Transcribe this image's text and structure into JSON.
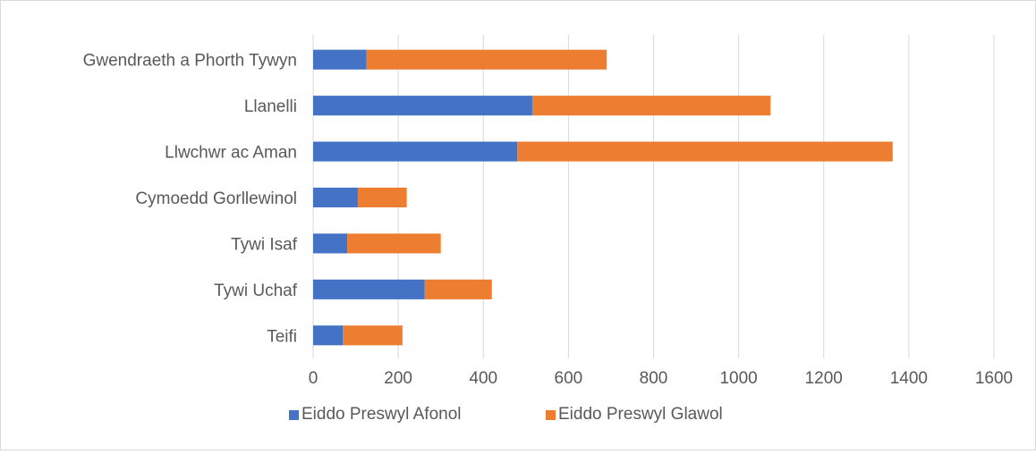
{
  "chart_data": {
    "type": "bar",
    "orientation": "horizontal",
    "stacked": true,
    "categories": [
      "Gwendraeth a Phorth Tywyn",
      "Llanelli",
      "Llwchwr ac Aman",
      "Cymoedd Gorllewinol",
      "Tywi Isaf",
      "Tywi Uchaf",
      "Teifi"
    ],
    "series": [
      {
        "name": "Eiddo Preswyl Afonol",
        "values": [
          125,
          515,
          480,
          105,
          80,
          262,
          70
        ]
      },
      {
        "name": "Eiddo Preswyl Glawol",
        "values": [
          565,
          560,
          882,
          115,
          220,
          158,
          140
        ]
      }
    ],
    "colors": [
      "#4472c4",
      "#ed7d31"
    ],
    "xlim": [
      0,
      1600
    ],
    "xticks": [
      "0",
      "200",
      "400",
      "600",
      "800",
      "1000",
      "1200",
      "1400",
      "1600"
    ],
    "grid": "vertical",
    "legend_position": "bottom",
    "title": "",
    "xlabel": "",
    "ylabel": ""
  }
}
